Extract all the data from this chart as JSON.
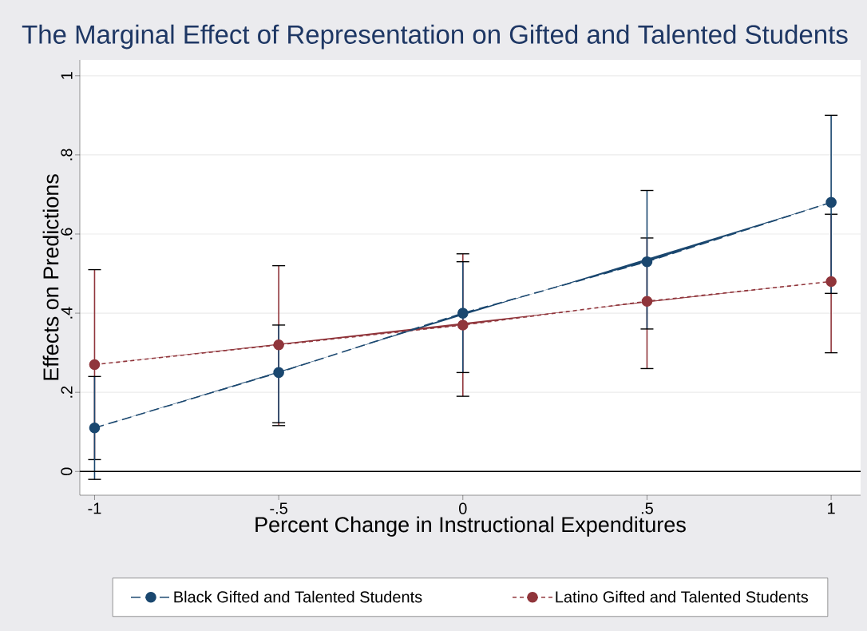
{
  "chart_data": {
    "type": "line",
    "title": "The Marginal Effect of Representation on Gifted and Talented Students",
    "xlabel": "Percent Change in Instructional Expenditures",
    "ylabel": "Effects on Predictions",
    "x": [
      -1,
      -0.5,
      0,
      0.5,
      1
    ],
    "series": [
      {
        "name": "Black Gifted and Talented Students",
        "color": "#1a476f",
        "line_style": "dashed",
        "values": [
          0.11,
          0.25,
          0.4,
          0.53,
          0.68
        ],
        "errors": [
          [
            -0.02,
            0.24
          ],
          [
            0.123,
            0.37
          ],
          [
            0.25,
            0.53
          ],
          [
            0.36,
            0.71
          ],
          [
            0.45,
            0.9
          ]
        ]
      },
      {
        "name": "Latino Gifted and Talented Students",
        "color": "#90353b",
        "line_style": "dotted",
        "values": [
          0.27,
          0.32,
          0.37,
          0.43,
          0.48
        ],
        "errors": [
          [
            0.03,
            0.51
          ],
          [
            0.116,
            0.52
          ],
          [
            0.19,
            0.55
          ],
          [
            0.26,
            0.59
          ],
          [
            0.3,
            0.65
          ]
        ]
      }
    ],
    "marker": "circle",
    "xlim": [
      -1.04,
      1.08
    ],
    "ylim": [
      -0.06,
      1.04
    ],
    "xticks": [
      -1,
      {
        "value": -0.5,
        "label": "-.5"
      },
      0,
      {
        "value": 0.5,
        "label": ".5"
      },
      1
    ],
    "yticks": [
      0,
      {
        "value": 0.2,
        "label": ".2"
      },
      {
        "value": 0.4,
        "label": ".4"
      },
      {
        "value": 0.6,
        "label": ".6"
      },
      {
        "value": 0.8,
        "label": ".8"
      },
      1
    ],
    "ref_lines": [
      {
        "axis": "y",
        "value": 0,
        "color": "#000000"
      }
    ],
    "grid": "y",
    "legend": "bottom"
  }
}
